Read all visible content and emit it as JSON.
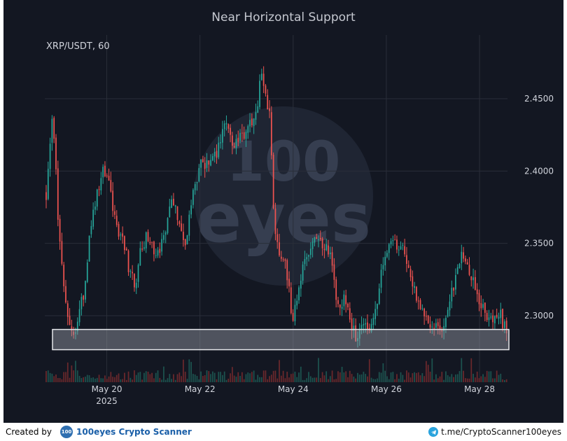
{
  "chart_data": {
    "type": "candlestick",
    "title": "Near Horizontal Support",
    "symbol_label": "XRP/USDT, 60",
    "x_ticks": [
      "May 20",
      "May 22",
      "May 24",
      "May 26",
      "May 28"
    ],
    "x_year_label": "2025",
    "y_ticks": [
      "2.3000",
      "2.3500",
      "2.4000",
      "2.4500"
    ],
    "y_tick_values": [
      2.3,
      2.35,
      2.4,
      2.45
    ],
    "ylim": [
      2.2585,
      2.4835
    ],
    "xlim_days": [
      18.67,
      28.6
    ],
    "support_zone": {
      "low": 2.2765,
      "high": 2.2905
    },
    "price_path": [
      [
        18.7,
        2.385
      ],
      [
        18.85,
        2.44
      ],
      [
        18.95,
        2.37
      ],
      [
        19.1,
        2.31
      ],
      [
        19.25,
        2.285
      ],
      [
        19.4,
        2.3
      ],
      [
        19.5,
        2.315
      ],
      [
        19.6,
        2.345
      ],
      [
        19.75,
        2.38
      ],
      [
        19.9,
        2.4
      ],
      [
        20.05,
        2.39
      ],
      [
        20.2,
        2.365
      ],
      [
        20.35,
        2.35
      ],
      [
        20.5,
        2.33
      ],
      [
        20.6,
        2.32
      ],
      [
        20.75,
        2.35
      ],
      [
        20.9,
        2.355
      ],
      [
        21.05,
        2.34
      ],
      [
        21.25,
        2.355
      ],
      [
        21.4,
        2.385
      ],
      [
        21.55,
        2.36
      ],
      [
        21.7,
        2.345
      ],
      [
        21.8,
        2.375
      ],
      [
        21.9,
        2.39
      ],
      [
        22.0,
        2.405
      ],
      [
        22.15,
        2.405
      ],
      [
        22.3,
        2.41
      ],
      [
        22.45,
        2.42
      ],
      [
        22.55,
        2.44
      ],
      [
        22.7,
        2.42
      ],
      [
        22.9,
        2.425
      ],
      [
        23.05,
        2.43
      ],
      [
        23.15,
        2.44
      ],
      [
        23.25,
        2.45
      ],
      [
        23.3,
        2.47
      ],
      [
        23.4,
        2.45
      ],
      [
        23.5,
        2.44
      ],
      [
        23.55,
        2.4
      ],
      [
        23.6,
        2.36
      ],
      [
        23.7,
        2.345
      ],
      [
        23.8,
        2.34
      ],
      [
        23.9,
        2.32
      ],
      [
        24.0,
        2.295
      ],
      [
        24.1,
        2.315
      ],
      [
        24.2,
        2.335
      ],
      [
        24.35,
        2.345
      ],
      [
        24.5,
        2.355
      ],
      [
        24.65,
        2.35
      ],
      [
        24.8,
        2.34
      ],
      [
        24.95,
        2.31
      ],
      [
        25.1,
        2.31
      ],
      [
        25.25,
        2.295
      ],
      [
        25.35,
        2.285
      ],
      [
        25.45,
        2.29
      ],
      [
        25.55,
        2.295
      ],
      [
        25.65,
        2.29
      ],
      [
        25.8,
        2.305
      ],
      [
        25.9,
        2.335
      ],
      [
        26.0,
        2.345
      ],
      [
        26.1,
        2.35
      ],
      [
        26.2,
        2.35
      ],
      [
        26.35,
        2.345
      ],
      [
        26.5,
        2.33
      ],
      [
        26.65,
        2.31
      ],
      [
        26.8,
        2.305
      ],
      [
        26.95,
        2.295
      ],
      [
        27.05,
        2.29
      ],
      [
        27.2,
        2.29
      ],
      [
        27.35,
        2.31
      ],
      [
        27.5,
        2.325
      ],
      [
        27.6,
        2.34
      ],
      [
        27.75,
        2.335
      ],
      [
        27.9,
        2.32
      ],
      [
        28.05,
        2.305
      ],
      [
        28.2,
        2.3
      ],
      [
        28.35,
        2.295
      ],
      [
        28.45,
        2.3
      ],
      [
        28.55,
        2.29
      ],
      [
        28.6,
        2.285
      ]
    ],
    "grid": true
  },
  "footer": {
    "created_by": "Created by",
    "logo_text": "100",
    "brand": "100eyes Crypto Scanner",
    "link": "t.me/CryptoScanner100eyes"
  },
  "watermark": {
    "line1": "100",
    "line2": "eyes"
  },
  "colors": {
    "background": "#131722",
    "up": "#26a69a",
    "down": "#ef5350",
    "grid": "#2a2e39",
    "text": "#d1d4dc",
    "support_fill": "#9a9ea8",
    "support_stroke": "#e6e7ea"
  }
}
